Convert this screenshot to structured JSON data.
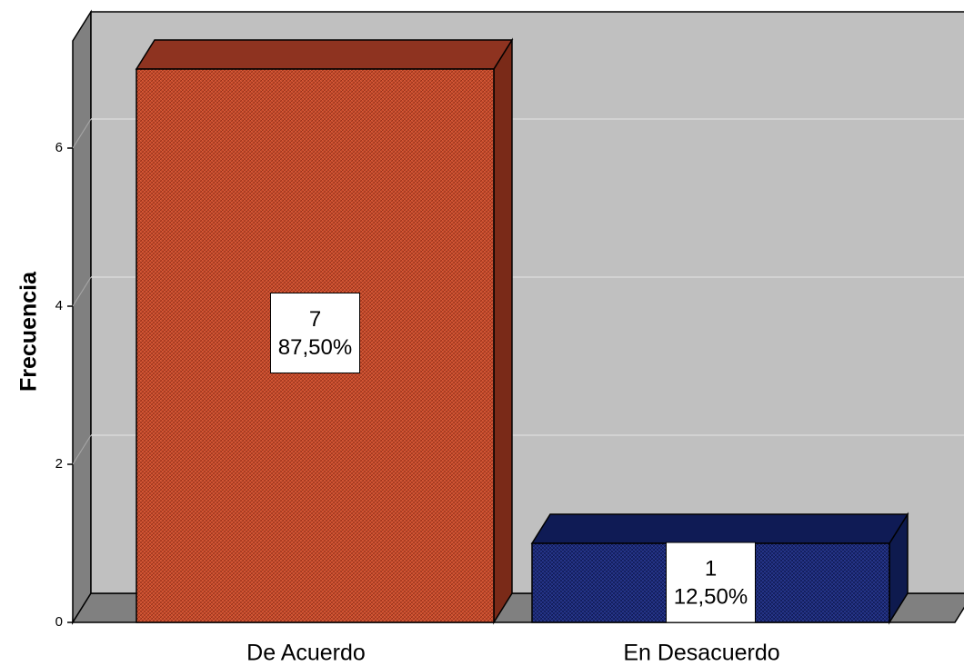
{
  "chart_data": {
    "type": "bar",
    "style": "3d",
    "categories": [
      "De Acuerdo",
      "En Desacuerdo"
    ],
    "values": [
      7,
      1
    ],
    "percent_labels": [
      "87,50%",
      "12,50%"
    ],
    "ylabel": "Frecuencia",
    "ylim": [
      0,
      7.5
    ],
    "yticks": [
      0,
      2,
      4,
      6
    ],
    "grid": true,
    "colors": {
      "bars": [
        "#C74A2A",
        "#1C2A78"
      ],
      "bar_sides": [
        "#7A2A18",
        "#0E1A4E"
      ],
      "bar_tops": [
        "#8E3320",
        "#0F1B55"
      ],
      "wall": "#C0C0C0",
      "wall_side": "#808080",
      "floor": "#808080",
      "gridline": "#D8D8D8"
    }
  }
}
